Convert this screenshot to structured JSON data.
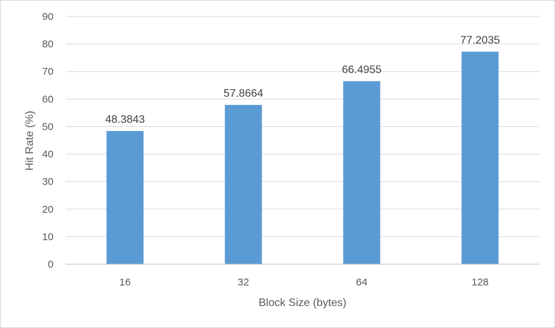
{
  "chart_data": {
    "type": "bar",
    "categories": [
      "16",
      "32",
      "64",
      "128"
    ],
    "values": [
      48.3843,
      57.8664,
      66.4955,
      77.2035
    ],
    "data_labels": [
      "48.3843",
      "57.8664",
      "66.4955",
      "77.2035"
    ],
    "title": "",
    "xlabel": "Block Size (bytes)",
    "ylabel": "Hit Rate (%)",
    "ylim": [
      0,
      90
    ],
    "yticks": [
      "0",
      "10",
      "20",
      "30",
      "40",
      "50",
      "60",
      "70",
      "80",
      "90"
    ],
    "grid": true,
    "legend": "none",
    "colors": {
      "bar": "#5b9bd5",
      "grid": "#d9d9d9",
      "axis": "#bfbfbf"
    }
  }
}
